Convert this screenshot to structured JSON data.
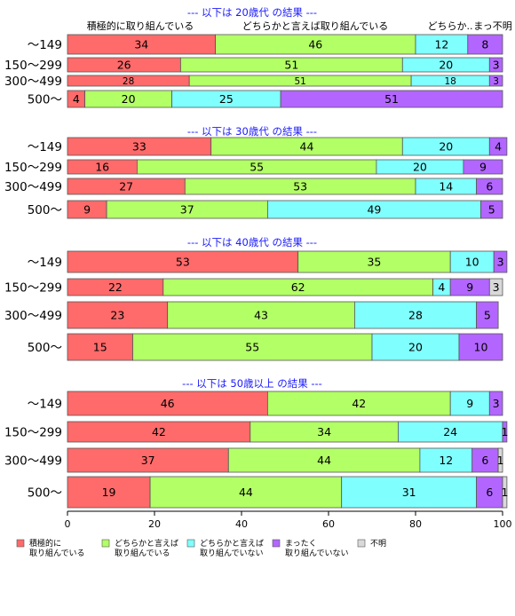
{
  "chart_data": {
    "type": "bar",
    "orientation": "horizontal",
    "stacked": true,
    "xlim": [
      0,
      100
    ],
    "x_ticks": [
      "0",
      "20",
      "40",
      "60",
      "80",
      "100"
    ],
    "column_headers": [
      "積極的に取り組んでいる",
      "どちらかと言えば取り組んでいる",
      "どちらか..",
      "まっ不明"
    ],
    "legend": {
      "position": "bottom",
      "items": [
        {
          "line1": "積極的に",
          "line2": "取り組んでいる",
          "color": "#ff6a6a"
        },
        {
          "line1": "どちらかと言えば",
          "line2": "取り組んでいる",
          "color": "#b3ff66"
        },
        {
          "line1": "どちらかと言えば",
          "line2": "取り組んでいない",
          "color": "#80ffff"
        },
        {
          "line1": "まったく",
          "line2": "取り組んでいない",
          "color": "#b266ff"
        },
        {
          "line1": "不明",
          "line2": "",
          "color": "#d9d9d9"
        }
      ]
    },
    "groups": [
      {
        "title": "--- 以下は 20歳代 の結果 ---",
        "rows": [
          {
            "label": "～149",
            "values": [
              34,
              46,
              12,
              8,
              0
            ]
          },
          {
            "label": "150～299",
            "values": [
              26,
              51,
              20,
              3,
              0
            ]
          },
          {
            "label": "300～499",
            "values": [
              28,
              51,
              18,
              3,
              0
            ]
          },
          {
            "label": "500～",
            "values": [
              4,
              20,
              25,
              51,
              0
            ]
          }
        ]
      },
      {
        "title": "--- 以下は 30歳代 の結果 ---",
        "rows": [
          {
            "label": "～149",
            "values": [
              33,
              44,
              20,
              4,
              0
            ]
          },
          {
            "label": "150～299",
            "values": [
              16,
              55,
              20,
              9,
              0
            ]
          },
          {
            "label": "300～499",
            "values": [
              27,
              53,
              14,
              6,
              0
            ]
          },
          {
            "label": "500～",
            "values": [
              9,
              37,
              49,
              5,
              0
            ]
          }
        ]
      },
      {
        "title": "--- 以下は 40歳代 の結果 ---",
        "rows": [
          {
            "label": "～149",
            "values": [
              53,
              35,
              10,
              3,
              0
            ]
          },
          {
            "label": "150～299",
            "values": [
              22,
              62,
              4,
              9,
              3
            ]
          },
          {
            "label": "300～499",
            "values": [
              23,
              43,
              28,
              5,
              0
            ]
          },
          {
            "label": "500～",
            "values": [
              15,
              55,
              20,
              10,
              0
            ]
          }
        ]
      },
      {
        "title": "--- 以下は 50歳以上 の結果 ---",
        "rows": [
          {
            "label": "～149",
            "values": [
              46,
              42,
              9,
              3,
              0
            ]
          },
          {
            "label": "150～299",
            "values": [
              42,
              34,
              24,
              1,
              0
            ]
          },
          {
            "label": "300～499",
            "values": [
              37,
              44,
              12,
              6,
              1
            ]
          },
          {
            "label": "500～",
            "values": [
              19,
              44,
              31,
              6,
              1
            ]
          }
        ]
      }
    ]
  }
}
